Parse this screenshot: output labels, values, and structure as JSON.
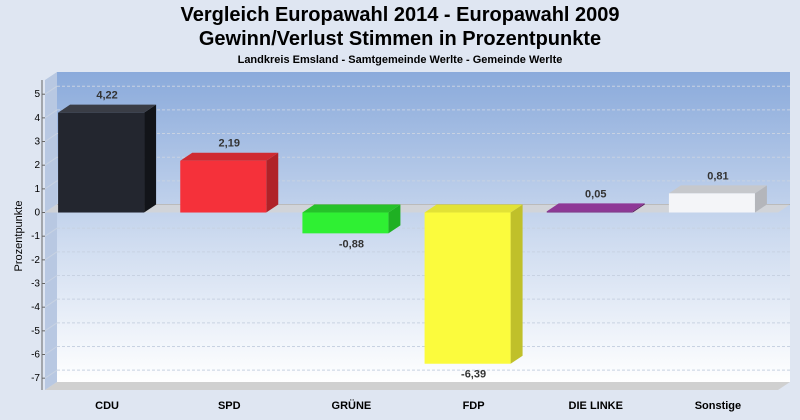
{
  "chart_data": {
    "type": "bar",
    "title": "Vergleich Europawahl 2014 - Europawahl 2009",
    "subtitle_line2": "Gewinn/Verlust Stimmen in Prozentpunkte",
    "subtitle": "Landkreis Emsland - Samtgemeinde Werlte - Gemeinde Werlte",
    "ylabel": "Prozentpunkte",
    "xlabel": "",
    "ylim": [
      -7,
      5
    ],
    "yticks": [
      5,
      4,
      3,
      2,
      1,
      0,
      -1,
      -2,
      -3,
      -4,
      -5,
      -6,
      -7
    ],
    "grid": true,
    "categories": [
      "CDU",
      "SPD",
      "GRÜNE",
      "FDP",
      "DIE LINKE",
      "Sonstige"
    ],
    "values": [
      4.22,
      2.19,
      -0.88,
      -6.39,
      0.05,
      0.81
    ],
    "value_labels": [
      "4,22",
      "2,19",
      "-0,88",
      "-6,39",
      "0,05",
      "0,81"
    ],
    "colors": [
      "#23262f",
      "#f5313a",
      "#2ff033",
      "#fbfb3d",
      "#7a2b82",
      "#f4f5f8"
    ],
    "side_colors": [
      "#121419",
      "#b02228",
      "#1fb023",
      "#c0c02a",
      "#561d5c",
      "#b4b6bb"
    ],
    "top_colors": [
      "#3a3d46",
      "#d02a31",
      "#26c22a",
      "#e2e236",
      "#8e3896",
      "#c6c8cc"
    ]
  }
}
